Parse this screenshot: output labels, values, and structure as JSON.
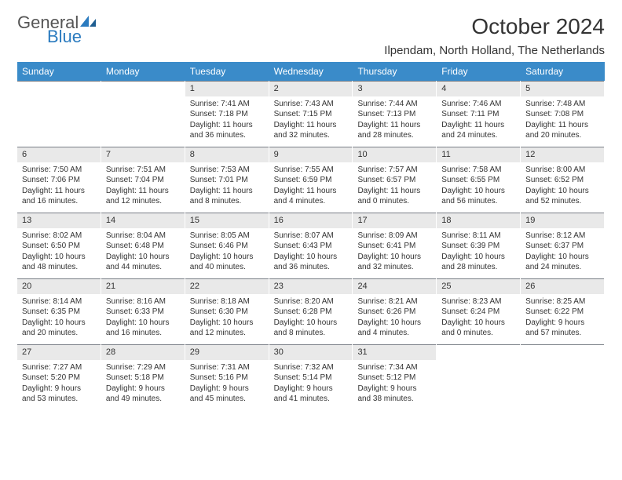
{
  "logo": {
    "text_top": "General",
    "text_bottom": "Blue",
    "brand_color": "#2b7bbf",
    "gray": "#555555"
  },
  "title": "October 2024",
  "location": "Ilpendam, North Holland, The Netherlands",
  "colors": {
    "header_bg": "#3a8bc9",
    "header_text": "#ffffff",
    "band_bg": "#e9e9e9",
    "band_border": "#7a7f87",
    "body_bg": "#ffffff",
    "text": "#333333"
  },
  "day_headers": [
    "Sunday",
    "Monday",
    "Tuesday",
    "Wednesday",
    "Thursday",
    "Friday",
    "Saturday"
  ],
  "weeks": [
    [
      {
        "empty": true
      },
      {
        "empty": true
      },
      {
        "n": "1",
        "sr": "Sunrise: 7:41 AM",
        "ss": "Sunset: 7:18 PM",
        "dl": "Daylight: 11 hours and 36 minutes."
      },
      {
        "n": "2",
        "sr": "Sunrise: 7:43 AM",
        "ss": "Sunset: 7:15 PM",
        "dl": "Daylight: 11 hours and 32 minutes."
      },
      {
        "n": "3",
        "sr": "Sunrise: 7:44 AM",
        "ss": "Sunset: 7:13 PM",
        "dl": "Daylight: 11 hours and 28 minutes."
      },
      {
        "n": "4",
        "sr": "Sunrise: 7:46 AM",
        "ss": "Sunset: 7:11 PM",
        "dl": "Daylight: 11 hours and 24 minutes."
      },
      {
        "n": "5",
        "sr": "Sunrise: 7:48 AM",
        "ss": "Sunset: 7:08 PM",
        "dl": "Daylight: 11 hours and 20 minutes."
      }
    ],
    [
      {
        "n": "6",
        "sr": "Sunrise: 7:50 AM",
        "ss": "Sunset: 7:06 PM",
        "dl": "Daylight: 11 hours and 16 minutes."
      },
      {
        "n": "7",
        "sr": "Sunrise: 7:51 AM",
        "ss": "Sunset: 7:04 PM",
        "dl": "Daylight: 11 hours and 12 minutes."
      },
      {
        "n": "8",
        "sr": "Sunrise: 7:53 AM",
        "ss": "Sunset: 7:01 PM",
        "dl": "Daylight: 11 hours and 8 minutes."
      },
      {
        "n": "9",
        "sr": "Sunrise: 7:55 AM",
        "ss": "Sunset: 6:59 PM",
        "dl": "Daylight: 11 hours and 4 minutes."
      },
      {
        "n": "10",
        "sr": "Sunrise: 7:57 AM",
        "ss": "Sunset: 6:57 PM",
        "dl": "Daylight: 11 hours and 0 minutes."
      },
      {
        "n": "11",
        "sr": "Sunrise: 7:58 AM",
        "ss": "Sunset: 6:55 PM",
        "dl": "Daylight: 10 hours and 56 minutes."
      },
      {
        "n": "12",
        "sr": "Sunrise: 8:00 AM",
        "ss": "Sunset: 6:52 PM",
        "dl": "Daylight: 10 hours and 52 minutes."
      }
    ],
    [
      {
        "n": "13",
        "sr": "Sunrise: 8:02 AM",
        "ss": "Sunset: 6:50 PM",
        "dl": "Daylight: 10 hours and 48 minutes."
      },
      {
        "n": "14",
        "sr": "Sunrise: 8:04 AM",
        "ss": "Sunset: 6:48 PM",
        "dl": "Daylight: 10 hours and 44 minutes."
      },
      {
        "n": "15",
        "sr": "Sunrise: 8:05 AM",
        "ss": "Sunset: 6:46 PM",
        "dl": "Daylight: 10 hours and 40 minutes."
      },
      {
        "n": "16",
        "sr": "Sunrise: 8:07 AM",
        "ss": "Sunset: 6:43 PM",
        "dl": "Daylight: 10 hours and 36 minutes."
      },
      {
        "n": "17",
        "sr": "Sunrise: 8:09 AM",
        "ss": "Sunset: 6:41 PM",
        "dl": "Daylight: 10 hours and 32 minutes."
      },
      {
        "n": "18",
        "sr": "Sunrise: 8:11 AM",
        "ss": "Sunset: 6:39 PM",
        "dl": "Daylight: 10 hours and 28 minutes."
      },
      {
        "n": "19",
        "sr": "Sunrise: 8:12 AM",
        "ss": "Sunset: 6:37 PM",
        "dl": "Daylight: 10 hours and 24 minutes."
      }
    ],
    [
      {
        "n": "20",
        "sr": "Sunrise: 8:14 AM",
        "ss": "Sunset: 6:35 PM",
        "dl": "Daylight: 10 hours and 20 minutes."
      },
      {
        "n": "21",
        "sr": "Sunrise: 8:16 AM",
        "ss": "Sunset: 6:33 PM",
        "dl": "Daylight: 10 hours and 16 minutes."
      },
      {
        "n": "22",
        "sr": "Sunrise: 8:18 AM",
        "ss": "Sunset: 6:30 PM",
        "dl": "Daylight: 10 hours and 12 minutes."
      },
      {
        "n": "23",
        "sr": "Sunrise: 8:20 AM",
        "ss": "Sunset: 6:28 PM",
        "dl": "Daylight: 10 hours and 8 minutes."
      },
      {
        "n": "24",
        "sr": "Sunrise: 8:21 AM",
        "ss": "Sunset: 6:26 PM",
        "dl": "Daylight: 10 hours and 4 minutes."
      },
      {
        "n": "25",
        "sr": "Sunrise: 8:23 AM",
        "ss": "Sunset: 6:24 PM",
        "dl": "Daylight: 10 hours and 0 minutes."
      },
      {
        "n": "26",
        "sr": "Sunrise: 8:25 AM",
        "ss": "Sunset: 6:22 PM",
        "dl": "Daylight: 9 hours and 57 minutes."
      }
    ],
    [
      {
        "n": "27",
        "sr": "Sunrise: 7:27 AM",
        "ss": "Sunset: 5:20 PM",
        "dl": "Daylight: 9 hours and 53 minutes."
      },
      {
        "n": "28",
        "sr": "Sunrise: 7:29 AM",
        "ss": "Sunset: 5:18 PM",
        "dl": "Daylight: 9 hours and 49 minutes."
      },
      {
        "n": "29",
        "sr": "Sunrise: 7:31 AM",
        "ss": "Sunset: 5:16 PM",
        "dl": "Daylight: 9 hours and 45 minutes."
      },
      {
        "n": "30",
        "sr": "Sunrise: 7:32 AM",
        "ss": "Sunset: 5:14 PM",
        "dl": "Daylight: 9 hours and 41 minutes."
      },
      {
        "n": "31",
        "sr": "Sunrise: 7:34 AM",
        "ss": "Sunset: 5:12 PM",
        "dl": "Daylight: 9 hours and 38 minutes."
      },
      {
        "empty": true
      },
      {
        "empty": true
      }
    ]
  ]
}
